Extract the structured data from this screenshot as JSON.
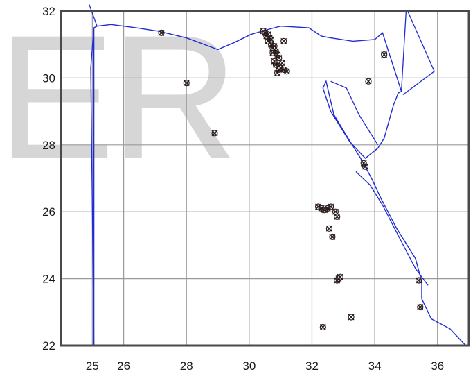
{
  "watermark": "ER",
  "map": {
    "x_ticks": [
      "25",
      "26",
      "28",
      "30",
      "32",
      "34",
      "36"
    ],
    "y_ticks": [
      "32",
      "30",
      "28",
      "26",
      "24",
      "22"
    ],
    "grid": true,
    "lon_range": [
      24,
      37
    ],
    "lat_range": [
      22,
      32
    ],
    "border_color": "#1f2bd4",
    "marker_color": "#2a1c1c",
    "grid_color": "#9a9a9a",
    "border": [
      [
        25.05,
        22.0
      ],
      [
        31.3,
        22.0
      ],
      [
        36.9,
        22.0
      ],
      [
        36.4,
        22.5
      ],
      [
        35.8,
        22.8
      ],
      [
        35.5,
        23.4
      ],
      [
        35.5,
        23.9
      ],
      [
        35.3,
        24.6
      ],
      [
        34.7,
        25.5
      ],
      [
        34.2,
        26.4
      ],
      [
        33.9,
        27.0
      ],
      [
        33.55,
        27.6
      ],
      [
        33.15,
        28.2
      ],
      [
        32.7,
        28.9
      ],
      [
        32.55,
        29.5
      ],
      [
        32.45,
        29.9
      ],
      [
        32.35,
        29.7
      ],
      [
        32.6,
        29.0
      ],
      [
        33.2,
        28.1
      ],
      [
        33.7,
        27.6
      ],
      [
        34.1,
        27.9
      ],
      [
        34.3,
        28.2
      ],
      [
        34.45,
        28.7
      ],
      [
        34.6,
        29.2
      ],
      [
        34.75,
        29.55
      ],
      [
        34.85,
        29.6
      ],
      [
        34.25,
        31.35
      ],
      [
        34.0,
        31.15
      ],
      [
        33.3,
        31.1
      ],
      [
        32.6,
        31.2
      ],
      [
        32.3,
        31.25
      ],
      [
        31.9,
        31.5
      ],
      [
        31.0,
        31.55
      ],
      [
        30.6,
        31.45
      ],
      [
        30.05,
        31.3
      ],
      [
        29.5,
        31.05
      ],
      [
        29.0,
        30.85
      ],
      [
        28.0,
        31.2
      ],
      [
        27.1,
        31.4
      ],
      [
        26.4,
        31.5
      ],
      [
        25.6,
        31.6
      ],
      [
        25.15,
        31.55
      ],
      [
        25.05,
        31.5
      ],
      [
        25.05,
        22.0
      ]
    ],
    "sinai_lines": [
      [
        [
          35.0,
          32.0
        ],
        [
          34.85,
          29.6
        ]
      ],
      [
        [
          35.05,
          32.0
        ],
        [
          35.9,
          30.2
        ],
        [
          34.9,
          29.5
        ]
      ],
      [
        [
          32.6,
          29.9
        ],
        [
          33.1,
          29.7
        ],
        [
          33.5,
          28.9
        ],
        [
          34.1,
          28.0
        ]
      ],
      [
        [
          24.9,
          32.2
        ],
        [
          25.15,
          31.55
        ]
      ],
      [
        [
          25.05,
          31.5
        ],
        [
          24.95,
          30.3
        ],
        [
          25.05,
          22.0
        ]
      ],
      [
        [
          33.4,
          27.2
        ],
        [
          33.85,
          26.8
        ],
        [
          34.25,
          26.2
        ],
        [
          34.8,
          25.2
        ],
        [
          35.3,
          24.3
        ],
        [
          35.7,
          23.8
        ]
      ]
    ],
    "points": [
      [
        27.2,
        31.35
      ],
      [
        28.0,
        29.85
      ],
      [
        28.9,
        28.35
      ],
      [
        31.1,
        31.1
      ],
      [
        33.8,
        29.9
      ],
      [
        34.3,
        30.7
      ],
      [
        33.7,
        27.35
      ],
      [
        33.65,
        27.45
      ],
      [
        32.2,
        26.15
      ],
      [
        32.3,
        26.1
      ],
      [
        32.4,
        26.05
      ],
      [
        32.5,
        26.1
      ],
      [
        32.6,
        26.15
      ],
      [
        32.75,
        26.0
      ],
      [
        32.8,
        25.85
      ],
      [
        32.55,
        25.5
      ],
      [
        32.65,
        25.25
      ],
      [
        32.85,
        24.0
      ],
      [
        32.9,
        24.05
      ],
      [
        32.8,
        23.95
      ],
      [
        33.25,
        22.85
      ],
      [
        32.35,
        22.55
      ],
      [
        35.4,
        23.95
      ],
      [
        35.45,
        23.15
      ],
      [
        30.45,
        31.4
      ],
      [
        30.55,
        31.25
      ],
      [
        30.6,
        31.1
      ],
      [
        30.7,
        31.0
      ],
      [
        30.75,
        30.9
      ],
      [
        30.85,
        30.8
      ],
      [
        30.65,
        31.2
      ],
      [
        30.5,
        31.35
      ],
      [
        30.8,
        30.95
      ],
      [
        30.9,
        30.7
      ],
      [
        30.95,
        30.6
      ],
      [
        30.8,
        30.5
      ],
      [
        30.85,
        30.4
      ],
      [
        30.95,
        30.35
      ],
      [
        31.0,
        30.3
      ],
      [
        31.1,
        30.25
      ],
      [
        31.2,
        30.2
      ],
      [
        30.95,
        30.25
      ],
      [
        30.7,
        31.15
      ],
      [
        30.6,
        31.3
      ],
      [
        30.75,
        30.75
      ],
      [
        31.05,
        30.45
      ],
      [
        30.9,
        30.15
      ]
    ]
  }
}
